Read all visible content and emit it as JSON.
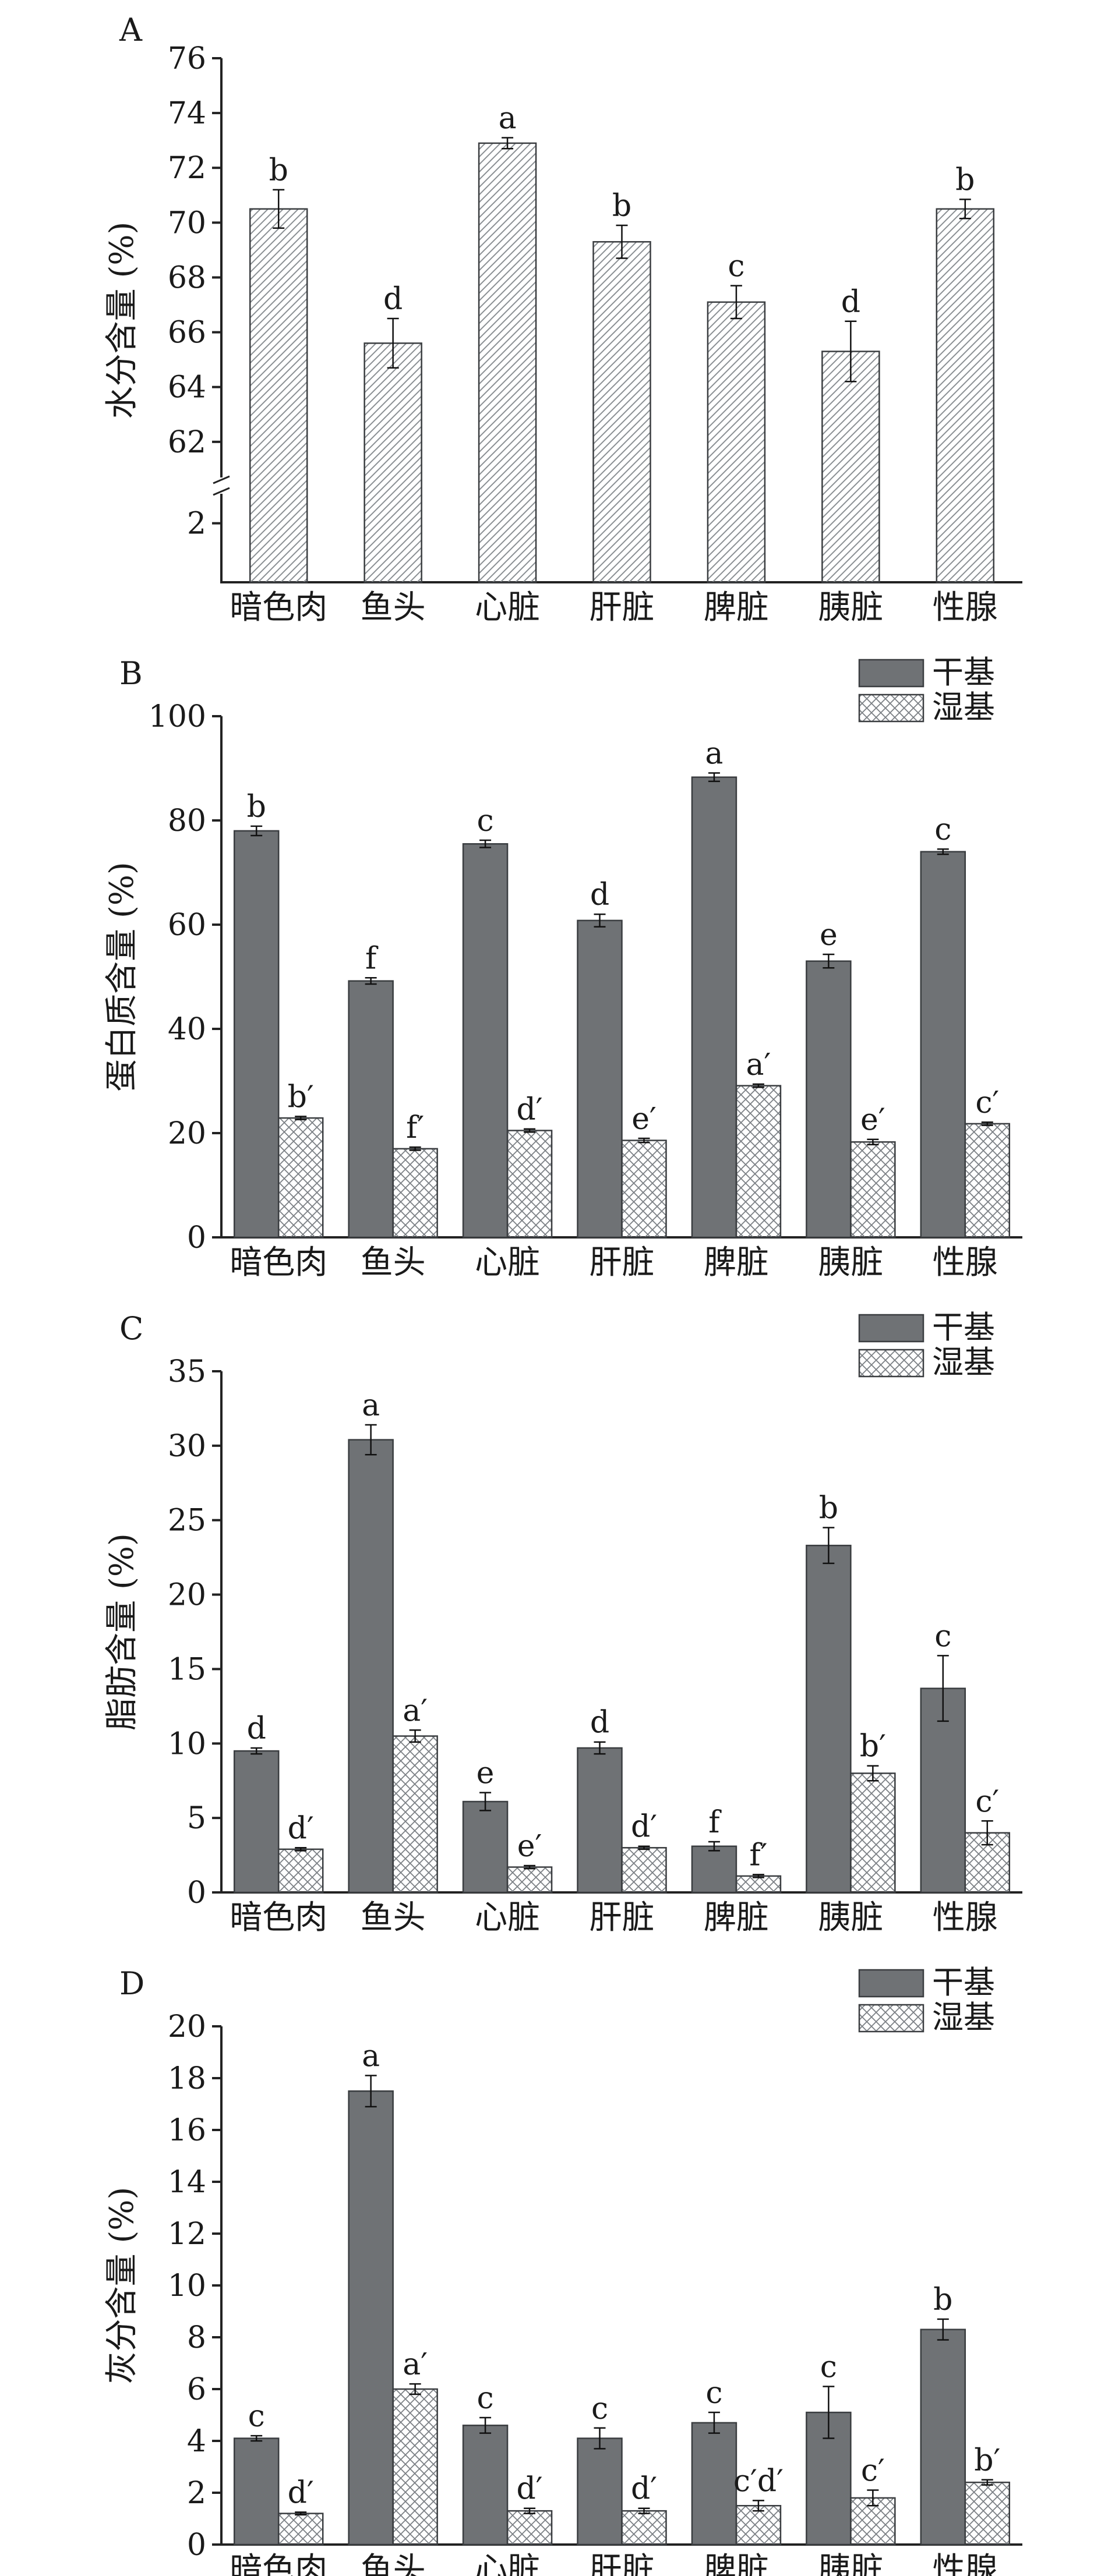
{
  "chart_data": [
    {
      "panel_label": "A",
      "type": "bar",
      "ylabel": "水分含量 (%)",
      "categories": [
        "暗色肉",
        "鱼头",
        "心脏",
        "肝脏",
        "脾脏",
        "胰脏",
        "性腺"
      ],
      "axis_break": true,
      "ylim_lower": [
        0,
        3
      ],
      "ylim_upper": [
        60.7,
        76
      ],
      "yticks_lower": [
        2
      ],
      "yticks_upper": [
        62,
        64,
        66,
        68,
        70,
        72,
        74,
        76
      ],
      "grid": false,
      "series": [
        {
          "values": [
            70.5,
            65.6,
            72.9,
            69.3,
            67.1,
            65.3,
            70.5
          ],
          "errors": [
            0.7,
            0.9,
            0.2,
            0.6,
            0.6,
            1.1,
            0.35
          ],
          "letters": [
            "b",
            "d",
            "a",
            "b",
            "c",
            "d",
            "b"
          ],
          "color": "#ffffff",
          "pattern": "diagonal"
        }
      ]
    },
    {
      "panel_label": "B",
      "type": "bar",
      "ylabel": "蛋白质含量 (%)",
      "categories": [
        "暗色肉",
        "鱼头",
        "心脏",
        "肝脏",
        "脾脏",
        "胰脏",
        "性腺"
      ],
      "ylim": [
        0,
        100
      ],
      "yticks": [
        0,
        20,
        40,
        60,
        80,
        100
      ],
      "grid": false,
      "legend_position": "top-right",
      "series": [
        {
          "name": "干基",
          "values": [
            78.0,
            49.2,
            75.5,
            60.8,
            88.3,
            53.0,
            74.0
          ],
          "errors": [
            0.9,
            0.6,
            0.7,
            1.2,
            0.8,
            1.3,
            0.5
          ],
          "letters": [
            "b",
            "f",
            "c",
            "d",
            "a",
            "e",
            "c"
          ],
          "color": "#6f7275",
          "pattern": "solid"
        },
        {
          "name": "湿基",
          "values": [
            22.9,
            17.0,
            20.5,
            18.6,
            29.1,
            18.3,
            21.8
          ],
          "errors": [
            0.3,
            0.3,
            0.3,
            0.4,
            0.3,
            0.5,
            0.3
          ],
          "letters": [
            "b′",
            "f′",
            "d′",
            "e′",
            "a′",
            "e′",
            "c′"
          ],
          "color": "#ffffff",
          "pattern": "crosshatch"
        }
      ]
    },
    {
      "panel_label": "C",
      "type": "bar",
      "ylabel": "脂肪含量 (%)",
      "categories": [
        "暗色肉",
        "鱼头",
        "心脏",
        "肝脏",
        "脾脏",
        "胰脏",
        "性腺"
      ],
      "ylim": [
        0,
        35
      ],
      "yticks": [
        0,
        5,
        10,
        15,
        20,
        25,
        30,
        35
      ],
      "grid": false,
      "legend_position": "top-right",
      "series": [
        {
          "name": "干基",
          "values": [
            9.5,
            30.4,
            6.1,
            9.7,
            3.1,
            23.3,
            13.7
          ],
          "errors": [
            0.2,
            1.0,
            0.6,
            0.4,
            0.3,
            1.2,
            2.2
          ],
          "letters": [
            "d",
            "a",
            "e",
            "d",
            "f",
            "b",
            "c"
          ],
          "color": "#6f7275",
          "pattern": "solid"
        },
        {
          "name": "湿基",
          "values": [
            2.9,
            10.5,
            1.7,
            3.0,
            1.1,
            8.0,
            4.0
          ],
          "errors": [
            0.1,
            0.4,
            0.1,
            0.1,
            0.1,
            0.5,
            0.8
          ],
          "letters": [
            "d′",
            "a′",
            "e′",
            "d′",
            "f′",
            "b′",
            "c′"
          ],
          "color": "#ffffff",
          "pattern": "crosshatch"
        }
      ]
    },
    {
      "panel_label": "D",
      "type": "bar",
      "ylabel": "灰分含量 (%)",
      "categories": [
        "暗色肉",
        "鱼头",
        "心脏",
        "肝脏",
        "脾脏",
        "胰脏",
        "性腺"
      ],
      "ylim": [
        0,
        20
      ],
      "yticks": [
        0,
        2,
        4,
        6,
        8,
        10,
        12,
        14,
        16,
        18,
        20
      ],
      "grid": false,
      "legend_position": "top-right",
      "series": [
        {
          "name": "干基",
          "values": [
            4.1,
            17.5,
            4.6,
            4.1,
            4.7,
            5.1,
            8.3
          ],
          "errors": [
            0.1,
            0.6,
            0.3,
            0.4,
            0.4,
            1.0,
            0.4
          ],
          "letters": [
            "c",
            "a",
            "c",
            "c",
            "c",
            "c",
            "b"
          ],
          "color": "#6f7275",
          "pattern": "solid"
        },
        {
          "name": "湿基",
          "values": [
            1.2,
            6.0,
            1.3,
            1.3,
            1.5,
            1.8,
            2.4
          ],
          "errors": [
            0.05,
            0.2,
            0.1,
            0.1,
            0.2,
            0.3,
            0.1
          ],
          "letters": [
            "d′",
            "a′",
            "d′",
            "d′",
            "c′d′",
            "c′",
            "b′"
          ],
          "color": "#ffffff",
          "pattern": "crosshatch"
        }
      ]
    }
  ]
}
